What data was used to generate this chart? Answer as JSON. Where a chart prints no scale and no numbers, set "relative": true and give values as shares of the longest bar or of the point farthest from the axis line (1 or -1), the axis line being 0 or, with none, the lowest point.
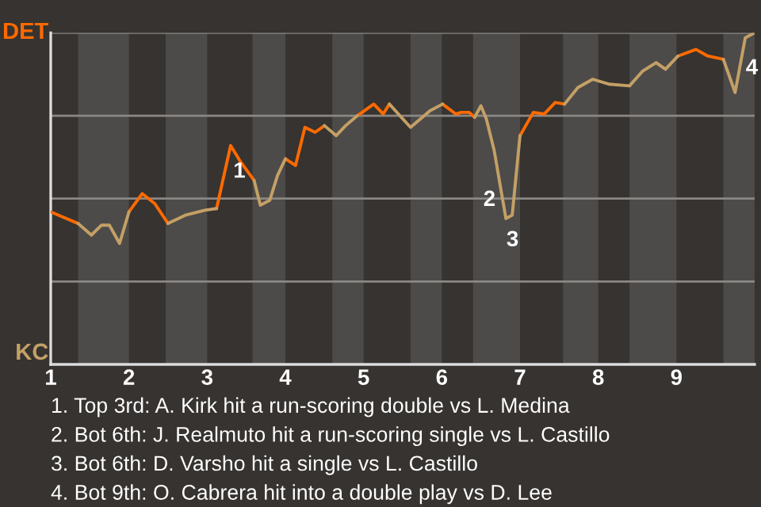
{
  "chart_data": {
    "type": "line",
    "relative": true,
    "legend": false,
    "xlim": [
      1,
      10
    ],
    "xticks": [
      1,
      2,
      3,
      4,
      5,
      6,
      7,
      8,
      9
    ],
    "ref_lines": [
      {
        "axis": "y",
        "value": 1,
        "color": "#8a8784"
      },
      {
        "axis": "y",
        "value": 0.5,
        "color": "#8a8784"
      },
      {
        "axis": "y",
        "value": 0,
        "color": "#8a8784"
      },
      {
        "axis": "y",
        "value": -0.5,
        "color": "#8a8784"
      }
    ],
    "bands": [
      {
        "axis": "x",
        "from": 1.35,
        "to": 2,
        "color": "#4d4b49"
      },
      {
        "axis": "x",
        "from": 2.47,
        "to": 3,
        "color": "#4d4b49"
      },
      {
        "axis": "x",
        "from": 3.58,
        "to": 4,
        "color": "#4d4b49"
      },
      {
        "axis": "x",
        "from": 4.6,
        "to": 5,
        "color": "#4d4b49"
      },
      {
        "axis": "x",
        "from": 5.6,
        "to": 6,
        "color": "#4d4b49"
      },
      {
        "axis": "x",
        "from": 6.4,
        "to": 7,
        "color": "#4d4b49"
      },
      {
        "axis": "x",
        "from": 7.55,
        "to": 8,
        "color": "#4d4b49"
      },
      {
        "axis": "x",
        "from": 8.4,
        "to": 9,
        "color": "#4d4b49"
      },
      {
        "axis": "x",
        "from": 9.6,
        "to": 10,
        "color": "#4d4b49"
      }
    ],
    "series": [
      {
        "name": "DET",
        "color": "#ff6a00",
        "x": [
          1,
          1.35,
          null,
          2,
          2.17,
          2.33,
          2.5,
          null,
          3.12,
          3.3,
          3.43,
          3.6,
          null,
          4,
          4.13,
          4.25,
          4.38,
          4.5,
          null,
          4.92,
          5.13,
          5.25,
          5.33,
          null,
          6.01,
          6.18,
          6.25,
          6.35,
          6.42,
          null,
          7,
          7.17,
          7.31,
          7.45,
          7.57,
          null,
          9.02,
          9.25,
          9.4,
          9.6
        ],
        "values": [
          -0.08,
          -0.15,
          null,
          -0.08,
          0.03,
          -0.03,
          -0.15,
          null,
          -0.06,
          0.32,
          0.22,
          0.11,
          null,
          0.24,
          0.2,
          0.43,
          0.4,
          0.44,
          null,
          0.5,
          0.57,
          0.51,
          0.57,
          null,
          0.57,
          0.51,
          0.52,
          0.52,
          0.49,
          null,
          0.38,
          0.52,
          0.51,
          0.58,
          0.57,
          null,
          0.86,
          0.9,
          0.86,
          0.84
        ]
      },
      {
        "name": "KC",
        "color": "#c4a066",
        "x": [
          1.35,
          1.52,
          1.65,
          1.75,
          1.88,
          2,
          null,
          2.5,
          2.72,
          2.97,
          3.12,
          null,
          3.6,
          3.68,
          3.8,
          3.9,
          4,
          null,
          4.5,
          4.65,
          4.77,
          4.92,
          null,
          5.33,
          5.6,
          5.85,
          6.01,
          null,
          6.42,
          6.5,
          6.57,
          6.67,
          6.75,
          6.82,
          6.9,
          7,
          null,
          7.57,
          7.74,
          7.93,
          8.14,
          8.4,
          8.57,
          8.74,
          8.86,
          9.02,
          null,
          9.6,
          9.75,
          9.88,
          10
        ],
        "values": [
          -0.15,
          -0.22,
          -0.16,
          -0.16,
          -0.27,
          -0.08,
          null,
          -0.15,
          -0.1,
          -0.07,
          -0.06,
          null,
          0.11,
          -0.04,
          -0.01,
          0.14,
          0.24,
          null,
          0.44,
          0.38,
          0.44,
          0.5,
          null,
          0.57,
          0.43,
          0.53,
          0.57,
          null,
          0.49,
          0.56,
          0.48,
          0.29,
          0.07,
          -0.12,
          -0.1,
          0.38,
          null,
          0.57,
          0.67,
          0.72,
          0.69,
          0.68,
          0.77,
          0.82,
          0.78,
          0.86,
          null,
          0.84,
          0.64,
          0.97,
          1.0
        ]
      }
    ],
    "annotations": [
      {
        "text": "1",
        "x": 3.3,
        "y": 0.32
      },
      {
        "text": "2",
        "x": 6.75,
        "y": 0.07
      },
      {
        "text": "3",
        "x": 6.82,
        "y": -0.12
      },
      {
        "text": "4",
        "x": 9.88,
        "y": 0.97
      },
      "1. Top 3rd: A. Kirk hit a run-scoring double vs L. Medina",
      "2. Bot 6th: J. Realmuto hit a run-scoring single vs L. Castillo",
      "3. Bot 6th: D. Varsho hit a single vs L. Castillo",
      "4. Bot 9th: O. Cabrera hit into a double play vs D. Lee"
    ]
  }
}
